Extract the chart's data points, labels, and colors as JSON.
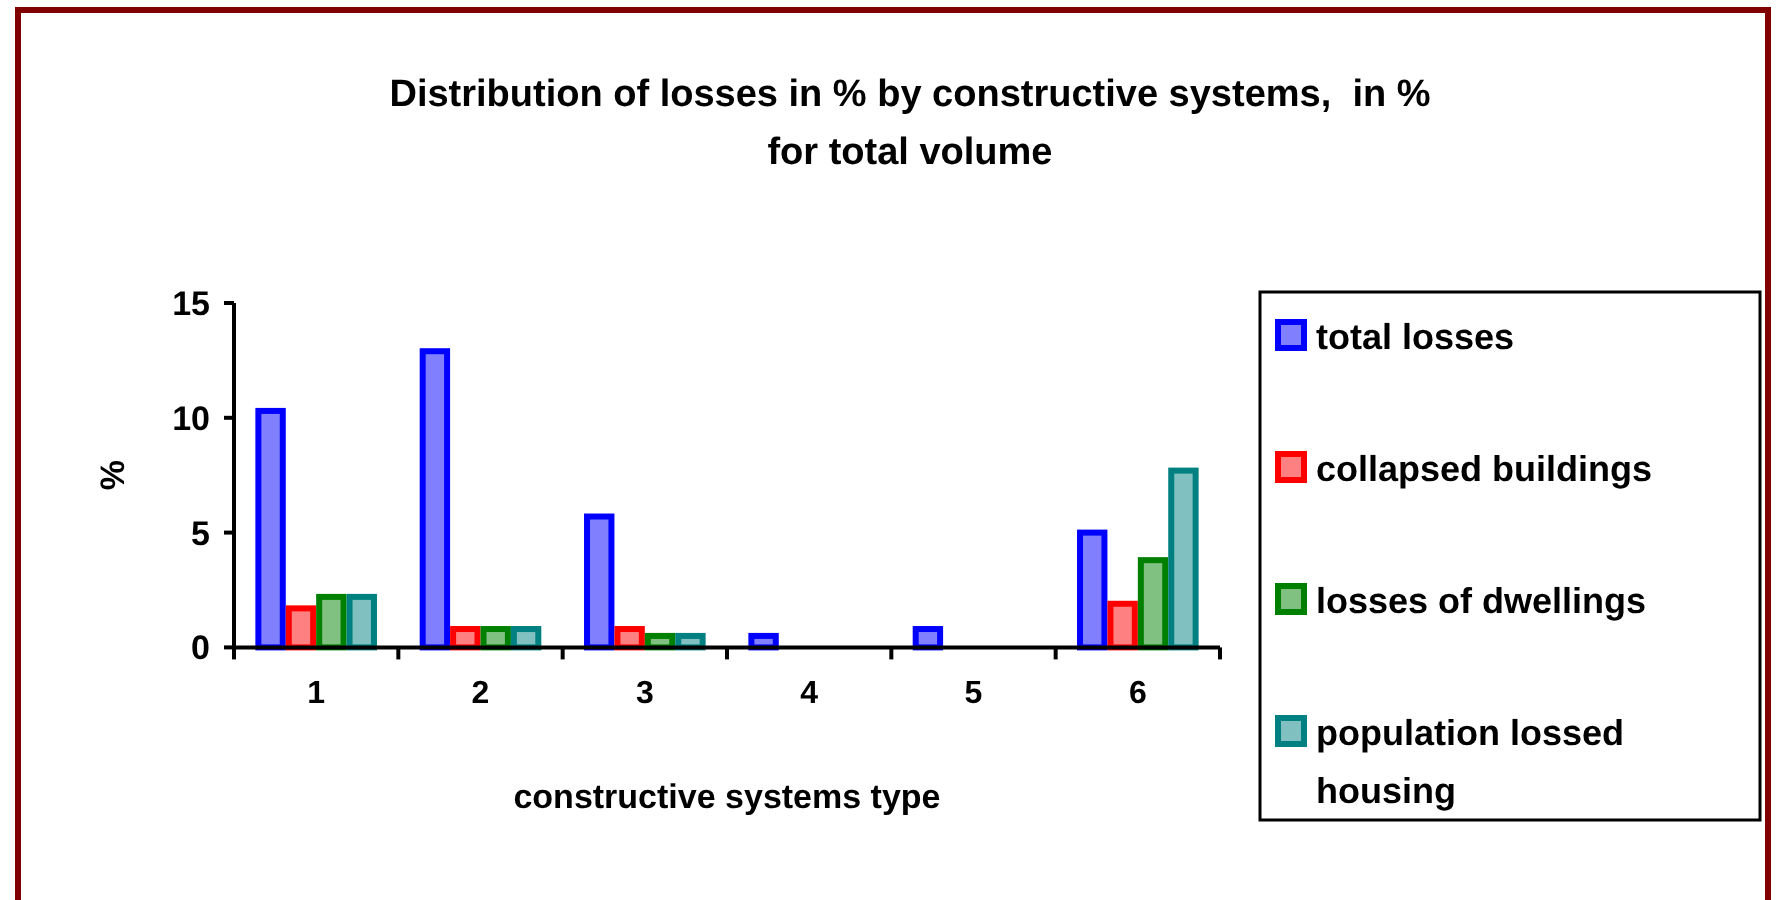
{
  "chart_data": {
    "type": "bar",
    "title": "Distribution of losses in % by constructive systems,  in %\nfor total volume",
    "xlabel": "constructive systems type",
    "ylabel": "%",
    "categories": [
      "1",
      "2",
      "3",
      "4",
      "5",
      "6"
    ],
    "series": [
      {
        "name": "total losses",
        "color": "#0000ff",
        "values": [
          10.3,
          12.9,
          5.7,
          0.5,
          0.8,
          5.0
        ]
      },
      {
        "name": "collapsed buildings",
        "color": "#ff0000",
        "values": [
          1.7,
          0.8,
          0.8,
          0,
          0,
          1.9
        ]
      },
      {
        "name": "losses of dwellings",
        "color": "#008000",
        "values": [
          2.2,
          0.8,
          0.5,
          0,
          0,
          3.8
        ]
      },
      {
        "name": "population lossed housing",
        "color": "#008080",
        "values": [
          2.2,
          0.8,
          0.5,
          0,
          0,
          7.7
        ]
      }
    ],
    "ylim": [
      0,
      15
    ],
    "yticks": [
      0,
      5,
      10,
      15
    ],
    "grid": false,
    "legend": "right"
  }
}
